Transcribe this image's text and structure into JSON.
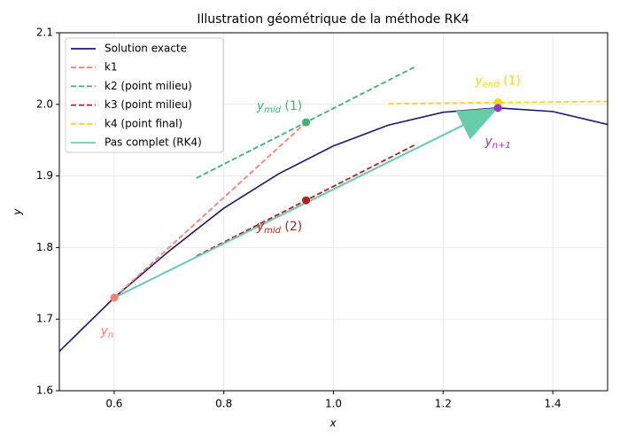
{
  "chart_data": {
    "type": "line",
    "title": "Illustration géométrique de la méthode RK4",
    "xlabel": "x",
    "ylabel": "y",
    "xlim": [
      0.5,
      1.5
    ],
    "ylim": [
      1.6,
      2.1
    ],
    "xticks": [
      0.6,
      0.8,
      {
        "value": 1,
        "label": "1.0"
      },
      1.2,
      1.4
    ],
    "yticks": [
      1.6,
      1.7,
      1.8,
      1.9,
      {
        "value": 2,
        "label": "2.0"
      },
      2.1
    ],
    "grid": true,
    "legend": "upper left",
    "series": [
      {
        "name": "Solution exacte",
        "color": "#191970",
        "style": "solid",
        "x": [
          0.5,
          0.6,
          0.7,
          0.8,
          0.9,
          1.0,
          1.1,
          1.2,
          1.3,
          1.4,
          1.5
        ],
        "values": [
          1.655,
          1.73,
          1.795,
          1.855,
          1.903,
          1.942,
          1.971,
          1.989,
          1.995,
          1.99,
          1.972
        ]
      },
      {
        "name": "k1",
        "color": "#fa8072",
        "style": "dashed",
        "x": [
          0.6,
          0.95
        ],
        "values": [
          1.73,
          1.975
        ]
      },
      {
        "name": "k2 (point milieu)",
        "color": "#3cb371",
        "style": "dashed",
        "x": [
          0.75,
          1.15
        ],
        "values": [
          1.897,
          2.053
        ]
      },
      {
        "name": "k3 (point milieu)",
        "color": "#b22222",
        "style": "dashed",
        "x": [
          0.75,
          1.15
        ],
        "values": [
          1.788,
          1.944
        ]
      },
      {
        "name": "k4 (point final)",
        "color": "#ffd700",
        "style": "dashed",
        "x": [
          1.1,
          1.5
        ],
        "values": [
          2.001,
          2.004
        ]
      },
      {
        "name": "Pas complet (RK4)",
        "color": "#66cdaa",
        "style": "arrow",
        "x": [
          0.6,
          1.3
        ],
        "values": [
          1.73,
          1.995
        ]
      }
    ],
    "points": [
      {
        "x": 0.6,
        "y": 1.73,
        "color": "#fa8072",
        "label": {
          "base": "y",
          "sub": "n"
        }
      },
      {
        "x": 0.95,
        "y": 1.975,
        "color": "#3cb371",
        "label": {
          "base": "y",
          "sub": "mid",
          "rest": " (1)"
        }
      },
      {
        "x": 0.95,
        "y": 1.866,
        "color": "#b22222",
        "label": {
          "base": "y",
          "sub": "mid",
          "rest": " (2)"
        }
      },
      {
        "x": 1.3,
        "y": 2.003,
        "color": "#ffd700",
        "label": {
          "base": "y",
          "sub": "end",
          "rest": " (1)"
        }
      },
      {
        "x": 1.3,
        "y": 1.995,
        "color": "#9932cc",
        "label": {
          "base": "y",
          "sub": "n+1"
        }
      }
    ]
  }
}
